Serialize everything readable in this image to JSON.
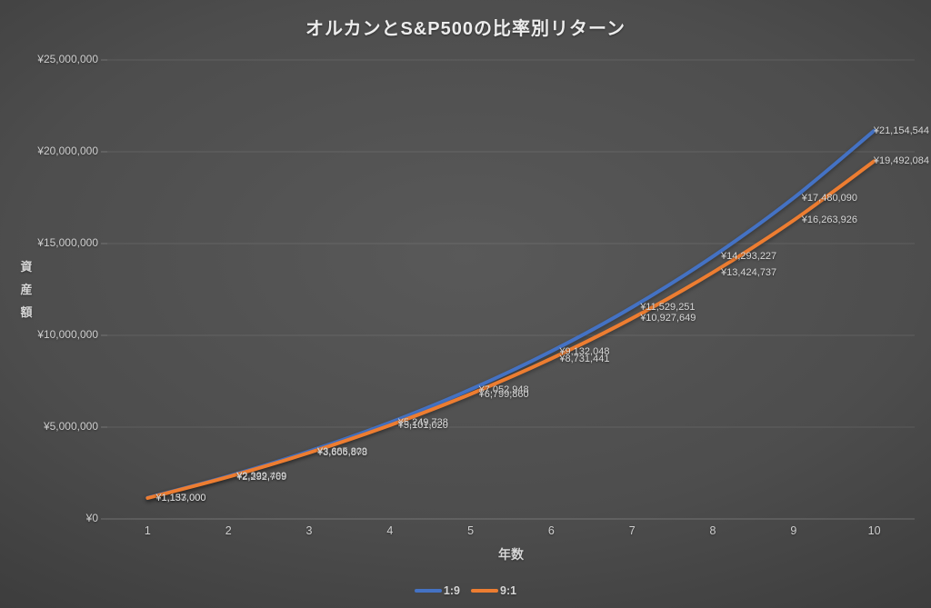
{
  "title": "オルカンとS&P500の比率別リターン",
  "chart_data": {
    "type": "line",
    "xlabel": "年数",
    "ylabel": "資産額",
    "categories": [
      "1",
      "2",
      "3",
      "4",
      "5",
      "6",
      "7",
      "8",
      "9",
      "10"
    ],
    "ylim": [
      0,
      25000000
    ],
    "ytick_interval": 5000000,
    "ytick_labels": [
      "¥0",
      "¥5,000,000",
      "¥10,000,000",
      "¥15,000,000",
      "¥20,000,000",
      "¥25,000,000"
    ],
    "grid": true,
    "legend_position": "bottom",
    "series": [
      {
        "name": "1:9",
        "color": "#4472C4",
        "values": [
          1153000,
          2329409,
          3685809,
          5249738,
          7052948,
          9132048,
          11529251,
          14293227,
          17480090,
          21154544
        ],
        "data_labels": [
          "¥1,153,000",
          "¥2,329,409",
          "¥3,685,809",
          "¥5,249,738",
          "¥7,052,948",
          "¥9,132,048",
          "¥11,529,251",
          "¥14,293,227",
          "¥17,480,090",
          "¥21,154,544"
        ]
      },
      {
        "name": "9:1",
        "color": "#ED7D31",
        "values": [
          1137000,
          2292769,
          3606878,
          5101020,
          6799860,
          8731441,
          10927649,
          13424737,
          16263926,
          19492084
        ],
        "data_labels": [
          "¥1,137,000",
          "¥2,292,769",
          "¥3,606,878",
          "¥5,101,020",
          "¥6,799,860",
          "¥8,731,441",
          "¥10,927,649",
          "¥13,424,737",
          "¥16,263,926",
          "¥19,492,084"
        ]
      }
    ]
  }
}
